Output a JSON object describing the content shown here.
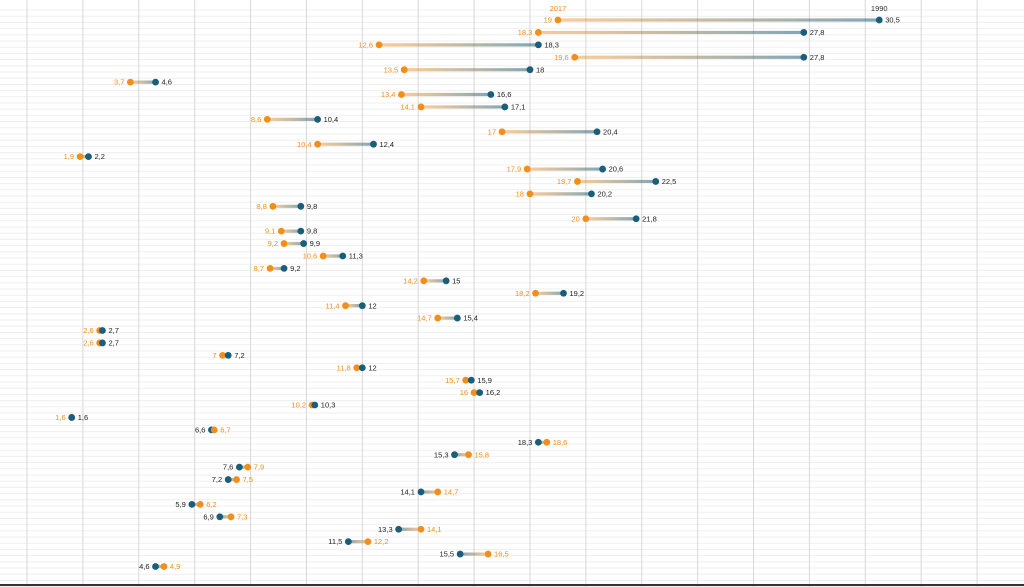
{
  "chart_data": {
    "type": "dumbbell",
    "series": [
      {
        "name": "2017",
        "color": "#f28e1c"
      },
      {
        "name": "1990",
        "color": "#1a5e7a"
      }
    ],
    "x_range": [
      0,
      35
    ],
    "grid": "on",
    "data_labels": "on",
    "rows": [
      {
        "v2017": 19,
        "v1990": 30.5,
        "l2017": "19",
        "l1990": "30,5"
      },
      {
        "v2017": 18.3,
        "v1990": 27.8,
        "l2017": "18,3",
        "l1990": "27,8"
      },
      {
        "v2017": 12.6,
        "v1990": 18.3,
        "l2017": "12,6",
        "l1990": "18,3"
      },
      {
        "v2017": 19.6,
        "v1990": 27.8,
        "l2017": "19,6",
        "l1990": "27,8"
      },
      {
        "v2017": 13.5,
        "v1990": 18,
        "l2017": "13,5",
        "l1990": "18"
      },
      {
        "v2017": 3.7,
        "v1990": 4.6,
        "l2017": "3,7",
        "l1990": "4,6"
      },
      {
        "v2017": 13.4,
        "v1990": 16.6,
        "l2017": "13,4",
        "l1990": "16,6"
      },
      {
        "v2017": 14.1,
        "v1990": 17.1,
        "l2017": "14,1",
        "l1990": "17,1"
      },
      {
        "v2017": 8.6,
        "v1990": 10.4,
        "l2017": "8,6",
        "l1990": "10,4"
      },
      {
        "v2017": 17,
        "v1990": 20.4,
        "l2017": "17",
        "l1990": "20,4"
      },
      {
        "v2017": 10.4,
        "v1990": 12.4,
        "l2017": "10,4",
        "l1990": "12,4"
      },
      {
        "v2017": 1.9,
        "v1990": 2.2,
        "l2017": "1,9",
        "l1990": "2,2"
      },
      {
        "v2017": 17.9,
        "v1990": 20.6,
        "l2017": "17,9",
        "l1990": "20,6"
      },
      {
        "v2017": 19.7,
        "v1990": 22.5,
        "l2017": "19,7",
        "l1990": "22,5"
      },
      {
        "v2017": 18,
        "v1990": 20.2,
        "l2017": "18",
        "l1990": "20,2"
      },
      {
        "v2017": 8.8,
        "v1990": 9.8,
        "l2017": "8,8",
        "l1990": "9,8"
      },
      {
        "v2017": 20,
        "v1990": 21.8,
        "l2017": "20",
        "l1990": "21,8"
      },
      {
        "v2017": 9.1,
        "v1990": 9.8,
        "l2017": "9,1",
        "l1990": "9,8"
      },
      {
        "v2017": 9.2,
        "v1990": 9.9,
        "l2017": "9,2",
        "l1990": "9,9"
      },
      {
        "v2017": 10.6,
        "v1990": 11.3,
        "l2017": "10,6",
        "l1990": "11,3"
      },
      {
        "v2017": 8.7,
        "v1990": 9.2,
        "l2017": "8,7",
        "l1990": "9,2"
      },
      {
        "v2017": 14.2,
        "v1990": 15,
        "l2017": "14,2",
        "l1990": "15"
      },
      {
        "v2017": 18.2,
        "v1990": 19.2,
        "l2017": "18,2",
        "l1990": "19,2"
      },
      {
        "v2017": 11.4,
        "v1990": 12,
        "l2017": "11,4",
        "l1990": "12"
      },
      {
        "v2017": 14.7,
        "v1990": 15.4,
        "l2017": "14,7",
        "l1990": "15,4"
      },
      {
        "v2017": 2.6,
        "v1990": 2.7,
        "l2017": "2,6",
        "l1990": "2,7"
      },
      {
        "v2017": 2.6,
        "v1990": 2.7,
        "l2017": "2,6",
        "l1990": "2,7"
      },
      {
        "v2017": 7,
        "v1990": 7.2,
        "l2017": "7",
        "l1990": "7,2"
      },
      {
        "v2017": 11.8,
        "v1990": 12,
        "l2017": "11,8",
        "l1990": "12"
      },
      {
        "v2017": 15.7,
        "v1990": 15.9,
        "l2017": "15,7",
        "l1990": "15,9"
      },
      {
        "v2017": 16,
        "v1990": 16.2,
        "l2017": "16",
        "l1990": "16,2"
      },
      {
        "v2017": 10.2,
        "v1990": 10.3,
        "l2017": "10,2",
        "l1990": "10,3"
      },
      {
        "v2017": 1.6,
        "v1990": 1.6,
        "l2017": "1,6",
        "l1990": "1,6"
      },
      {
        "v2017": 6.7,
        "v1990": 6.6,
        "l2017": "6,7",
        "l1990": "6,6"
      },
      {
        "v2017": 18.6,
        "v1990": 18.3,
        "l2017": "18,6",
        "l1990": "18,3"
      },
      {
        "v2017": 15.8,
        "v1990": 15.3,
        "l2017": "15,8",
        "l1990": "15,3"
      },
      {
        "v2017": 7.9,
        "v1990": 7.6,
        "l2017": "7,9",
        "l1990": "7,6"
      },
      {
        "v2017": 7.5,
        "v1990": 7.2,
        "l2017": "7,5",
        "l1990": "7,2"
      },
      {
        "v2017": 14.7,
        "v1990": 14.1,
        "l2017": "14,7",
        "l1990": "14,1"
      },
      {
        "v2017": 6.2,
        "v1990": 5.9,
        "l2017": "6,2",
        "l1990": "5,9"
      },
      {
        "v2017": 7.3,
        "v1990": 6.9,
        "l2017": "7,3",
        "l1990": "6,9"
      },
      {
        "v2017": 14.1,
        "v1990": 13.3,
        "l2017": "14,1",
        "l1990": "13,3"
      },
      {
        "v2017": 12.2,
        "v1990": 11.5,
        "l2017": "12,2",
        "l1990": "11,5"
      },
      {
        "v2017": 16.5,
        "v1990": 15.5,
        "l2017": "16,5",
        "l1990": "15,5"
      },
      {
        "v2017": 4.9,
        "v1990": 4.6,
        "l2017": "4,9",
        "l1990": "4,6"
      }
    ]
  }
}
